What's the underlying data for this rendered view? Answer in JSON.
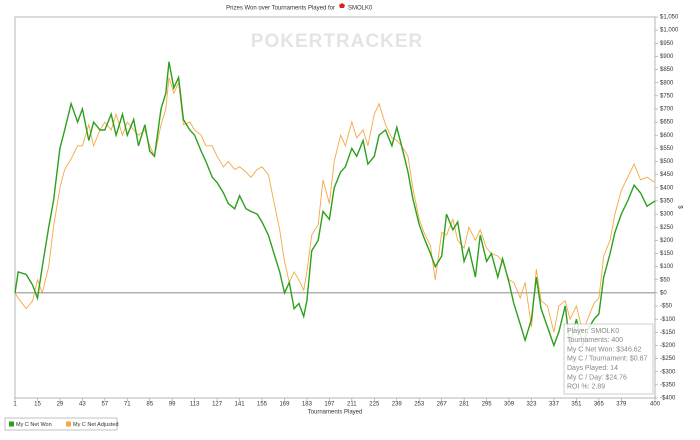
{
  "chart_data": {
    "type": "line",
    "title": "Prizes Won over Tournaments Played for",
    "player": "SMOLK0",
    "watermark": "POKERTRACKER",
    "x_label": "Tournaments Played",
    "y_label": "$",
    "x": [
      1,
      3,
      8,
      12,
      15,
      18,
      22,
      25,
      29,
      32,
      36,
      40,
      43,
      47,
      50,
      54,
      57,
      61,
      64,
      68,
      71,
      75,
      78,
      82,
      85,
      88,
      92,
      95,
      97,
      100,
      103,
      106,
      110,
      113,
      117,
      120,
      124,
      127,
      131,
      134,
      138,
      141,
      145,
      148,
      152,
      155,
      159,
      162,
      166,
      169,
      172,
      175,
      178,
      181,
      183,
      186,
      190,
      193,
      197,
      200,
      204,
      207,
      211,
      214,
      218,
      221,
      225,
      228,
      232,
      236,
      239,
      242,
      246,
      249,
      253,
      256,
      260,
      263,
      267,
      270,
      274,
      277,
      281,
      284,
      288,
      291,
      295,
      298,
      302,
      305,
      309,
      312,
      316,
      319,
      323,
      326,
      329,
      333,
      337,
      340,
      344,
      347,
      351,
      355,
      358,
      362,
      365,
      368,
      372,
      375,
      379,
      383,
      387,
      391,
      395,
      400
    ],
    "series": [
      {
        "name": "My C Net Won",
        "color": "#2ca01c",
        "values": [
          0,
          80,
          70,
          30,
          -20,
          100,
          250,
          350,
          550,
          620,
          720,
          650,
          700,
          580,
          650,
          620,
          620,
          680,
          600,
          680,
          600,
          660,
          560,
          640,
          540,
          520,
          700,
          760,
          880,
          780,
          820,
          660,
          620,
          600,
          540,
          500,
          440,
          420,
          380,
          340,
          320,
          370,
          320,
          310,
          300,
          270,
          220,
          160,
          80,
          0,
          40,
          -60,
          -40,
          -90,
          -30,
          160,
          200,
          310,
          280,
          400,
          460,
          480,
          550,
          520,
          580,
          490,
          520,
          600,
          620,
          560,
          630,
          560,
          460,
          360,
          260,
          210,
          150,
          100,
          140,
          300,
          240,
          270,
          120,
          170,
          60,
          220,
          120,
          150,
          60,
          130,
          40,
          -40,
          -120,
          -180,
          -100,
          60,
          -60,
          -130,
          -200,
          -150,
          -50,
          -200,
          -100,
          -200,
          -140,
          -100,
          -80,
          60,
          150,
          230,
          300,
          350,
          410,
          380,
          330,
          350
        ]
      },
      {
        "name": "My C Net Adjusted",
        "color": "#f5a742",
        "values": [
          0,
          -20,
          -60,
          -30,
          50,
          0,
          100,
          250,
          400,
          470,
          510,
          560,
          560,
          640,
          560,
          620,
          650,
          620,
          680,
          600,
          650,
          620,
          600,
          620,
          560,
          520,
          640,
          700,
          820,
          760,
          800,
          640,
          650,
          620,
          600,
          560,
          560,
          520,
          480,
          500,
          470,
          480,
          460,
          440,
          470,
          480,
          450,
          360,
          240,
          120,
          40,
          80,
          50,
          10,
          80,
          220,
          260,
          430,
          340,
          500,
          600,
          560,
          650,
          590,
          620,
          560,
          680,
          720,
          640,
          590,
          580,
          560,
          520,
          400,
          280,
          230,
          180,
          50,
          230,
          220,
          280,
          200,
          170,
          250,
          200,
          240,
          170,
          150,
          140,
          120,
          50,
          40,
          -20,
          40,
          -130,
          90,
          -30,
          -50,
          -150,
          -50,
          -30,
          -100,
          -50,
          -150,
          -100,
          -40,
          -20,
          140,
          200,
          300,
          390,
          440,
          490,
          430,
          440,
          420
        ]
      }
    ],
    "xlim": [
      1,
      400
    ],
    "xticks": [
      1,
      15,
      29,
      43,
      57,
      71,
      85,
      99,
      113,
      127,
      141,
      155,
      169,
      183,
      197,
      211,
      225,
      239,
      253,
      267,
      281,
      295,
      309,
      323,
      337,
      351,
      365,
      379,
      400
    ],
    "ylim": [
      -400,
      1050
    ],
    "yticks": [
      {
        "value": -400,
        "label": "-$400"
      },
      {
        "value": -350,
        "label": "-$350"
      },
      {
        "value": -300,
        "label": "-$300"
      },
      {
        "value": -250,
        "label": "-$250"
      },
      {
        "value": -200,
        "label": "-$200"
      },
      {
        "value": -150,
        "label": "-$150"
      },
      {
        "value": -100,
        "label": "-$100"
      },
      {
        "value": -50,
        "label": "-$50"
      },
      {
        "value": 0,
        "label": "$0"
      },
      {
        "value": 50,
        "label": "$50"
      },
      {
        "value": 100,
        "label": "$100"
      },
      {
        "value": 150,
        "label": "$150"
      },
      {
        "value": 200,
        "label": "$200"
      },
      {
        "value": 250,
        "label": "$250"
      },
      {
        "value": 300,
        "label": "$300"
      },
      {
        "value": 350,
        "label": "$350"
      },
      {
        "value": 400,
        "label": "$400"
      },
      {
        "value": 450,
        "label": "$450"
      },
      {
        "value": 500,
        "label": "$500"
      },
      {
        "value": 550,
        "label": "$550"
      },
      {
        "value": 600,
        "label": "$600"
      },
      {
        "value": 650,
        "label": "$650"
      },
      {
        "value": 700,
        "label": "$700"
      },
      {
        "value": 750,
        "label": "$750"
      },
      {
        "value": 800,
        "label": "$800"
      },
      {
        "value": 850,
        "label": "$850"
      },
      {
        "value": 900,
        "label": "$900"
      },
      {
        "value": 950,
        "label": "$950"
      },
      {
        "value": 1000,
        "label": "$1,000"
      },
      {
        "value": 1050,
        "label": "$1,050"
      }
    ],
    "info": [
      "Player: SMOLK0",
      "Tournaments: 400",
      "My C Net Won: $346.62",
      "My C / Tournament: $0.87",
      "Days Played: 14",
      "My C / Day: $24.76",
      "ROI %: 2.89"
    ]
  }
}
